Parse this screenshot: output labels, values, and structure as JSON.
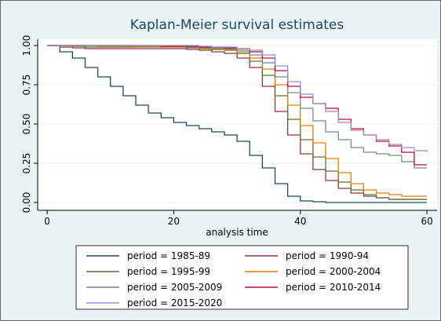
{
  "chart_data": {
    "type": "step",
    "title": "Kaplan-Meier survival estimates",
    "x_label": "analysis time",
    "x": [
      0,
      2,
      4,
      6,
      8,
      10,
      12,
      14,
      16,
      18,
      20,
      22,
      24,
      26,
      28,
      30,
      32,
      34,
      36,
      38,
      40,
      42,
      44,
      46,
      48,
      50,
      52,
      54,
      56,
      58,
      60
    ],
    "xlim": [
      -1.5,
      61.6
    ],
    "ylim": [
      -0.05,
      1.04
    ],
    "xticks": [
      0,
      20,
      40,
      60
    ],
    "yticks": [
      {
        "value": 0,
        "label": "0.00"
      },
      {
        "value": 0.25,
        "label": "0.25"
      },
      {
        "value": 0.5,
        "label": "0.50"
      },
      {
        "value": 0.75,
        "label": "0.75"
      },
      {
        "value": 1,
        "label": "1.00"
      }
    ],
    "grid": true,
    "legend": "bottom",
    "series": [
      {
        "name": "period = 1985-89",
        "color": "#1a476f",
        "values": [
          1,
          0.96,
          0.92,
          0.86,
          0.8,
          0.74,
          0.68,
          0.62,
          0.57,
          0.54,
          0.51,
          0.49,
          0.47,
          0.45,
          0.43,
          0.39,
          0.3,
          0.22,
          0.12,
          0.04,
          0.01,
          0.005,
          0,
          0,
          0,
          0,
          0,
          0,
          0,
          0,
          0
        ]
      },
      {
        "name": "period = 1990-94",
        "color": "#90353b",
        "values": [
          1,
          0.99,
          0.985,
          0.98,
          0.98,
          0.98,
          0.98,
          0.98,
          0.98,
          0.98,
          0.98,
          0.975,
          0.97,
          0.96,
          0.95,
          0.92,
          0.86,
          0.74,
          0.58,
          0.43,
          0.31,
          0.21,
          0.14,
          0.09,
          0.06,
          0.04,
          0.03,
          0.02,
          0.02,
          0.02,
          0.02
        ]
      },
      {
        "name": "period = 1995-99",
        "color": "#55752f",
        "values": [
          1,
          1,
          0.995,
          0.99,
          0.99,
          0.99,
          0.99,
          0.99,
          0.99,
          0.99,
          0.99,
          0.985,
          0.98,
          0.975,
          0.97,
          0.95,
          0.9,
          0.81,
          0.68,
          0.53,
          0.4,
          0.29,
          0.2,
          0.13,
          0.08,
          0.05,
          0.03,
          0.02,
          0.02,
          0.02,
          0.02
        ]
      },
      {
        "name": "period = 2000-2004",
        "color": "#e37e00",
        "values": [
          1,
          1,
          1,
          1,
          0.995,
          0.995,
          0.995,
          0.99,
          0.99,
          0.99,
          0.99,
          0.99,
          0.985,
          0.98,
          0.975,
          0.96,
          0.92,
          0.85,
          0.75,
          0.62,
          0.49,
          0.38,
          0.28,
          0.19,
          0.12,
          0.08,
          0.06,
          0.05,
          0.04,
          0.04,
          0.04
        ]
      },
      {
        "name": "period = 2005-2009",
        "color": "#6e8e84",
        "values": [
          1,
          1,
          1,
          1,
          1,
          1,
          1,
          0.995,
          0.995,
          0.995,
          0.995,
          0.99,
          0.99,
          0.985,
          0.98,
          0.97,
          0.94,
          0.89,
          0.8,
          0.7,
          0.6,
          0.52,
          0.45,
          0.4,
          0.35,
          0.32,
          0.31,
          0.3,
          0.26,
          0.22,
          0.22
        ]
      },
      {
        "name": "period = 2010-2014",
        "color": "#c10534",
        "values": [
          1,
          1,
          1,
          1,
          1,
          1,
          1,
          1,
          1,
          0.995,
          0.995,
          0.995,
          0.99,
          0.99,
          0.985,
          0.98,
          0.96,
          0.92,
          0.84,
          0.74,
          0.67,
          0.63,
          0.6,
          0.53,
          0.47,
          0.43,
          0.39,
          0.36,
          0.32,
          0.24,
          0.24
        ]
      },
      {
        "name": "period = 2015-2020",
        "color": "#938dd2",
        "values": [
          1,
          1,
          1,
          1,
          1,
          1,
          1,
          1,
          1,
          1,
          1,
          1,
          0.995,
          0.99,
          0.99,
          0.98,
          0.97,
          0.94,
          0.87,
          0.77,
          0.69,
          0.63,
          0.58,
          0.51,
          0.46,
          0.43,
          0.4,
          0.37,
          0.35,
          0.33,
          0.32
        ]
      }
    ]
  }
}
